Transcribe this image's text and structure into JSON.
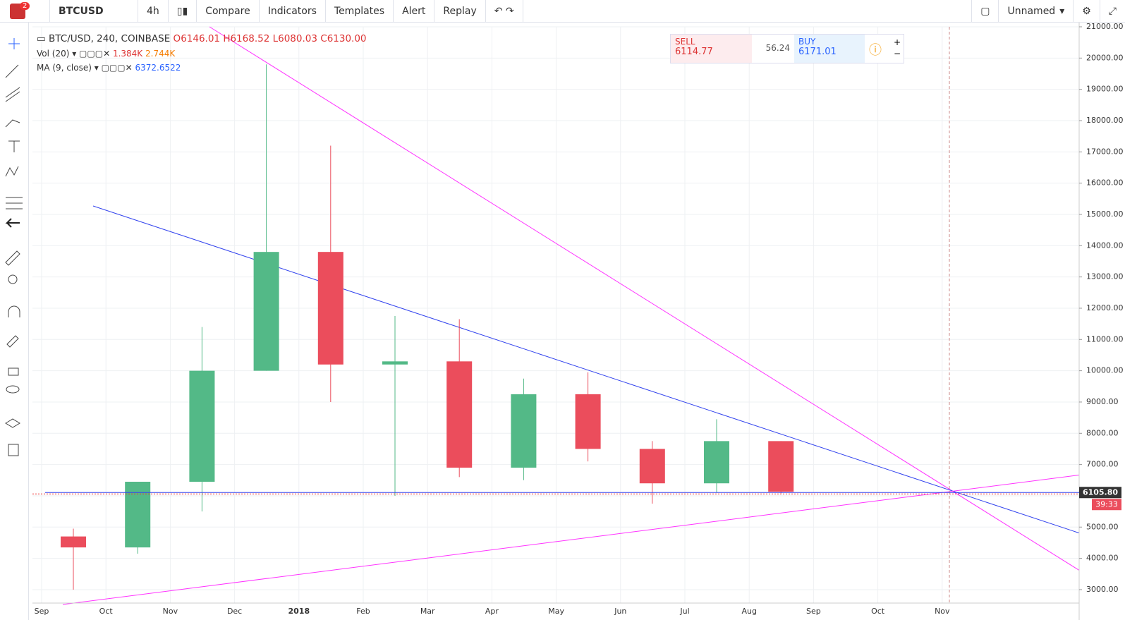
{
  "toolbar": {
    "badge": "2",
    "symbol": "BTCUSD",
    "interval": "4h",
    "compare": "Compare",
    "indicators": "Indicators",
    "templates": "Templates",
    "alert": "Alert",
    "replay": "Replay",
    "layout_name": "Unnamed"
  },
  "legend": {
    "title": "BTC/USD, 240, COINBASE",
    "open": "6146.01",
    "high": "6168.52",
    "low": "6080.03",
    "close": "6130.00",
    "vol_label": "Vol (20)",
    "vol_value": "1.384K",
    "vol_ma": "2.744K",
    "ma_label": "MA (9, close)",
    "ma_value": "6372.6522"
  },
  "trade_widget": {
    "sell_label": "SELL",
    "sell_price": "6114.77",
    "spread": "56.24",
    "buy_label": "BUY",
    "buy_price": "6171.01"
  },
  "chart_data": {
    "type": "candlestick",
    "categories": [
      "Sep",
      "Oct",
      "Nov",
      "Dec",
      "2018",
      "Feb",
      "Mar",
      "Apr",
      "May",
      "Jun",
      "Jul",
      "Aug",
      "Sep",
      "Oct",
      "Nov"
    ],
    "open": [
      4700,
      4350,
      6450,
      10000,
      13800,
      10200,
      10300,
      6900,
      9250,
      7500,
      6400,
      7750,
      null,
      null,
      null
    ],
    "high": [
      4950,
      6450,
      11400,
      19800,
      17200,
      11750,
      11650,
      9750,
      9950,
      7750,
      8450,
      7750,
      null,
      null,
      null
    ],
    "low": [
      3000,
      4150,
      5500,
      10000,
      9000,
      6000,
      6600,
      6500,
      7100,
      5750,
      6100,
      6080,
      null,
      null,
      null
    ],
    "close": [
      4350,
      6450,
      10000,
      13800,
      10200,
      10300,
      6900,
      9250,
      7500,
      6400,
      7750,
      6130,
      null,
      null,
      null
    ],
    "up_color": "#53b987",
    "down_color": "#eb4d5c",
    "grid": true,
    "ylim": [
      2570,
      21000
    ],
    "yticks": [
      {
        "value": 3000,
        "label": "3000.00"
      },
      {
        "value": 4000,
        "label": "4000.00"
      },
      {
        "value": 5000,
        "label": "5000.00"
      },
      {
        "value": 6000,
        "label": "6000.00"
      },
      {
        "value": 7000,
        "label": "7000.00"
      },
      {
        "value": 8000,
        "label": "8000.00"
      },
      {
        "value": 9000,
        "label": "9000.00"
      },
      {
        "value": 10000,
        "label": "10000.00"
      },
      {
        "value": 11000,
        "label": "11000.00"
      },
      {
        "value": 12000,
        "label": "12000.00"
      },
      {
        "value": 13000,
        "label": "13000.00"
      },
      {
        "value": 14000,
        "label": "14000.00"
      },
      {
        "value": 15000,
        "label": "15000.00"
      },
      {
        "value": 16000,
        "label": "16000.00"
      },
      {
        "value": 17000,
        "label": "17000.00"
      },
      {
        "value": 18000,
        "label": "18000.00"
      },
      {
        "value": 19000,
        "label": "19000.00"
      },
      {
        "value": 20000,
        "label": "20000.00"
      },
      {
        "value": 21000,
        "label": "21000.00"
      }
    ],
    "last_price": {
      "value": 6105.8,
      "label": "6105.80"
    },
    "countdown": "39:33"
  }
}
